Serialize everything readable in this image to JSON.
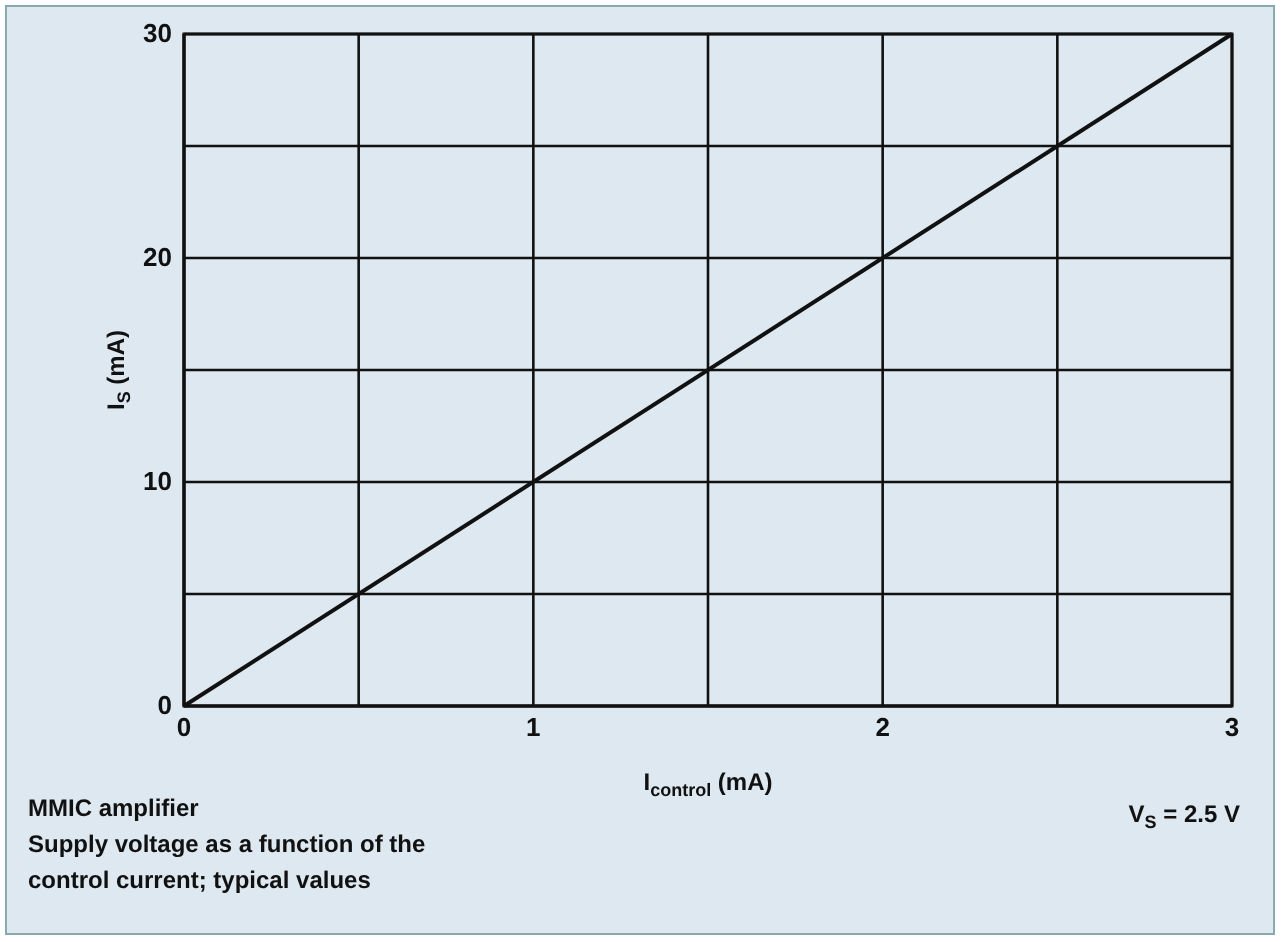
{
  "chart_data": {
    "type": "line",
    "xlabel": "I$_{control}$ (mA)",
    "ylabel": "I$_{S}$ (mA)",
    "x": [
      0,
      3
    ],
    "series": [
      {
        "color": "#111111",
        "values": [
          0,
          30
        ]
      }
    ],
    "xlim": [
      0,
      3
    ],
    "ylim": [
      0,
      30
    ],
    "xticks": [
      0,
      {
        "value": 0.5,
        "label": null
      },
      1,
      {
        "value": 1.5,
        "label": null
      },
      2,
      {
        "value": 2.5,
        "label": null
      },
      3
    ],
    "yticks": [
      0,
      {
        "value": 5,
        "label": null
      },
      10,
      {
        "value": 15,
        "label": null
      },
      20,
      {
        "value": 25,
        "label": null
      },
      30
    ],
    "grid": true,
    "marker": "none",
    "line_style": "solid",
    "annotations": [
      "MMIC amplifier",
      "Supply voltage as a function of the control current; typical values",
      "V$_{S}$ = 2.5 V"
    ]
  }
}
